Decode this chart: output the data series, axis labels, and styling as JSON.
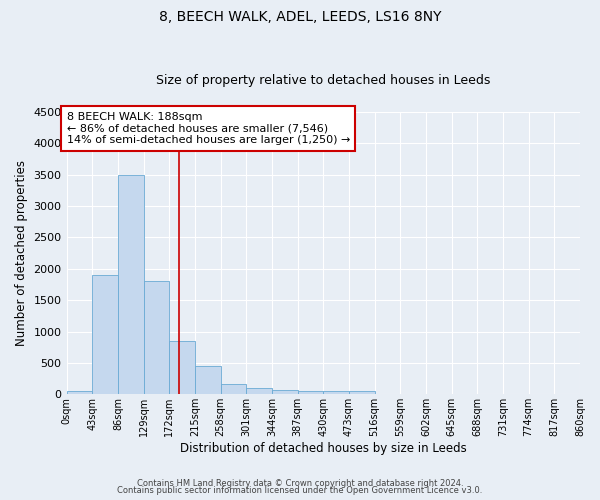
{
  "title": "8, BEECH WALK, ADEL, LEEDS, LS16 8NY",
  "subtitle": "Size of property relative to detached houses in Leeds",
  "xlabel": "Distribution of detached houses by size in Leeds",
  "ylabel": "Number of detached properties",
  "background_color": "#e8eef5",
  "bar_color": "#c5d8ee",
  "bar_edge_color": "#6aaad4",
  "bins": [
    0,
    43,
    86,
    129,
    172,
    215,
    258,
    301,
    344,
    387,
    430,
    473,
    516,
    559,
    602,
    645,
    688,
    731,
    774,
    817,
    860
  ],
  "counts": [
    50,
    1900,
    3500,
    1800,
    850,
    450,
    170,
    100,
    65,
    55,
    50,
    50,
    0,
    0,
    0,
    0,
    0,
    0,
    0,
    0
  ],
  "tick_labels": [
    "0sqm",
    "43sqm",
    "86sqm",
    "129sqm",
    "172sqm",
    "215sqm",
    "258sqm",
    "301sqm",
    "344sqm",
    "387sqm",
    "430sqm",
    "473sqm",
    "516sqm",
    "559sqm",
    "602sqm",
    "645sqm",
    "688sqm",
    "731sqm",
    "774sqm",
    "817sqm",
    "860sqm"
  ],
  "vline_x": 188,
  "vline_color": "#cc0000",
  "ylim": [
    0,
    4500
  ],
  "xlim": [
    0,
    860
  ],
  "annotation_text": "8 BEECH WALK: 188sqm\n← 86% of detached houses are smaller (7,546)\n14% of semi-detached houses are larger (1,250) →",
  "annotation_box_color": "#ffffff",
  "annotation_box_edge_color": "#cc0000",
  "footer_line1": "Contains HM Land Registry data © Crown copyright and database right 2024.",
  "footer_line2": "Contains public sector information licensed under the Open Government Licence v3.0.",
  "title_fontsize": 10,
  "subtitle_fontsize": 9,
  "annotation_fontsize": 8,
  "tick_fontsize": 7,
  "ylabel_fontsize": 8.5,
  "xlabel_fontsize": 8.5,
  "footer_fontsize": 6
}
